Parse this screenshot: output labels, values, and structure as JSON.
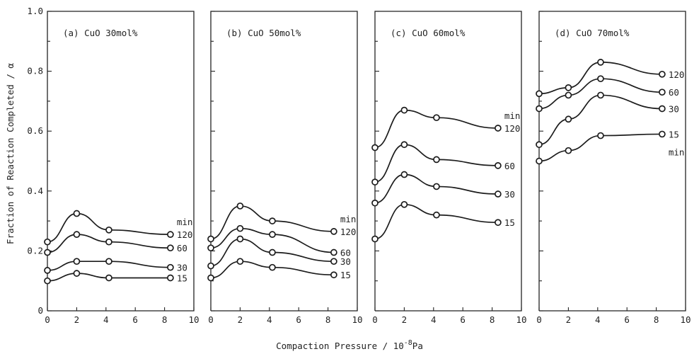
{
  "figure": {
    "xlabel": "Compaction Pressure / 10",
    "xlabel_exponent": "-8",
    "xlabel_unit": "Pa",
    "ylabel": "Fraction of Reaction Completed / α"
  },
  "chart_data": [
    {
      "type": "line",
      "title": "(a) CuO 30mol%",
      "xlim": [
        0,
        10
      ],
      "ylim": [
        0,
        1.0
      ],
      "xticks": [
        "0",
        "2",
        "4",
        "6",
        "8",
        "10"
      ],
      "yticks": [
        "0",
        "0.2",
        "0.4",
        "0.6",
        "0.8",
        "1.0"
      ],
      "unit_label": "min",
      "series": [
        {
          "name": "120",
          "x": [
            0,
            2,
            4.2,
            8.4
          ],
          "values": [
            0.23,
            0.325,
            0.27,
            0.255
          ]
        },
        {
          "name": "60",
          "x": [
            0,
            2,
            4.2,
            8.4
          ],
          "values": [
            0.195,
            0.255,
            0.23,
            0.21
          ]
        },
        {
          "name": "30",
          "x": [
            0,
            2,
            4.2,
            8.4
          ],
          "values": [
            0.135,
            0.165,
            0.165,
            0.145
          ]
        },
        {
          "name": "15",
          "x": [
            0,
            2,
            4.2,
            8.4
          ],
          "values": [
            0.1,
            0.125,
            0.11,
            0.11
          ]
        }
      ]
    },
    {
      "type": "line",
      "title": "(b) CuO 50mol%",
      "xlim": [
        0,
        10
      ],
      "ylim": [
        0,
        1.0
      ],
      "xticks": [
        "0",
        "2",
        "4",
        "6",
        "8",
        "10"
      ],
      "unit_label": "min",
      "series": [
        {
          "name": "120",
          "x": [
            0,
            2,
            4.2,
            8.4
          ],
          "values": [
            0.24,
            0.35,
            0.3,
            0.265
          ]
        },
        {
          "name": "60",
          "x": [
            0,
            2,
            4.2,
            8.4
          ],
          "values": [
            0.21,
            0.275,
            0.255,
            0.195
          ]
        },
        {
          "name": "30",
          "x": [
            0,
            2,
            4.2,
            8.4
          ],
          "values": [
            0.15,
            0.24,
            0.195,
            0.165
          ]
        },
        {
          "name": "15",
          "x": [
            0,
            2,
            4.2,
            8.4
          ],
          "values": [
            0.11,
            0.165,
            0.145,
            0.12
          ]
        }
      ]
    },
    {
      "type": "line",
      "title": "(c) CuO 60mol%",
      "xlim": [
        0,
        10
      ],
      "ylim": [
        0,
        1.0
      ],
      "xticks": [
        "0",
        "2",
        "4",
        "6",
        "8",
        "10"
      ],
      "unit_label": "min",
      "series": [
        {
          "name": "120",
          "x": [
            0,
            2,
            4.2,
            8.4
          ],
          "values": [
            0.545,
            0.67,
            0.645,
            0.61
          ]
        },
        {
          "name": "60",
          "x": [
            0,
            2,
            4.2,
            8.4
          ],
          "values": [
            0.43,
            0.555,
            0.505,
            0.485
          ]
        },
        {
          "name": "30",
          "x": [
            0,
            2,
            4.2,
            8.4
          ],
          "values": [
            0.36,
            0.455,
            0.415,
            0.39
          ]
        },
        {
          "name": "15",
          "x": [
            0,
            2,
            4.2,
            8.4
          ],
          "values": [
            0.24,
            0.355,
            0.32,
            0.295
          ]
        }
      ]
    },
    {
      "type": "line",
      "title": "(d) CuO 70mol%",
      "xlim": [
        0,
        10
      ],
      "ylim": [
        0,
        1.0
      ],
      "xticks": [
        "0",
        "2",
        "4",
        "6",
        "8",
        "10"
      ],
      "unit_label": "min",
      "series": [
        {
          "name": "120",
          "x": [
            0,
            2,
            4.2,
            8.4
          ],
          "values": [
            0.725,
            0.745,
            0.83,
            0.79
          ]
        },
        {
          "name": "60",
          "x": [
            0,
            2,
            4.2,
            8.4
          ],
          "values": [
            0.675,
            0.72,
            0.775,
            0.73
          ]
        },
        {
          "name": "30",
          "x": [
            0,
            2,
            4.2,
            8.4
          ],
          "values": [
            0.555,
            0.64,
            0.72,
            0.675
          ]
        },
        {
          "name": "15",
          "x": [
            0,
            2,
            4.2,
            8.4
          ],
          "values": [
            0.5,
            0.535,
            0.585,
            0.59
          ]
        }
      ]
    }
  ]
}
